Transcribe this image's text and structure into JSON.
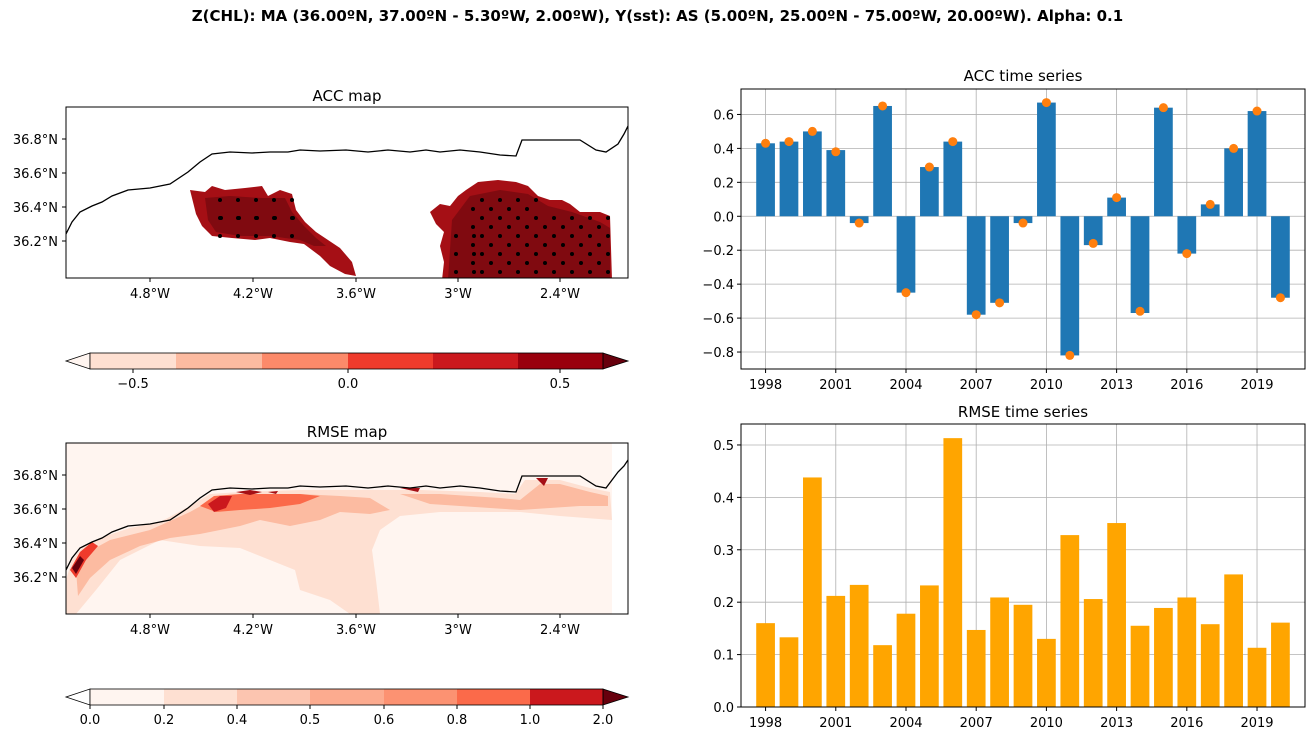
{
  "suptitle": "Z(CHL): MA (36.00ºN, 37.00ºN - 5.30ºW, 2.00ºW), Y(sst): AS (5.00ºN, 25.00ºN - 75.00ºW, 20.00ºW). Alpha: 0.1",
  "colors": {
    "acc_bar": "#1f77b4",
    "acc_dot": "#ff7f0e",
    "rmse_bar": "#ffa500",
    "grid": "#b0b0b0",
    "coast": "#000000",
    "reds": [
      "#fff5f0",
      "#fee0d2",
      "#fcbba1",
      "#fc9272",
      "#fb6a4a",
      "#ef3b2c",
      "#cb181d",
      "#a50f15",
      "#67000d"
    ]
  },
  "maps": {
    "acc": {
      "title": "ACC map",
      "lat_ticks": [
        "36.2°N",
        "36.4°N",
        "36.6°N",
        "36.8°N"
      ],
      "lon_ticks": [
        "4.8°W",
        "4.2°W",
        "3.6°W",
        "3°W",
        "2.4°W"
      ],
      "colorbar_ticks": [
        "−0.5",
        "0.0",
        "0.5"
      ]
    },
    "rmse": {
      "title": "RMSE map",
      "lat_ticks": [
        "36.2°N",
        "36.4°N",
        "36.6°N",
        "36.8°N"
      ],
      "lon_ticks": [
        "4.8°W",
        "4.2°W",
        "3.6°W",
        "3°W",
        "2.4°W"
      ],
      "colorbar_ticks": [
        "0.0",
        "0.2",
        "0.4",
        "0.5",
        "0.6",
        "0.8",
        "1.0",
        "2.0"
      ]
    }
  },
  "chart_data": [
    {
      "type": "bar",
      "title": "ACC time series",
      "xlabel": "",
      "ylabel": "",
      "x": [
        1998,
        1999,
        2000,
        2001,
        2002,
        2003,
        2004,
        2005,
        2006,
        2007,
        2008,
        2009,
        2010,
        2011,
        2012,
        2013,
        2014,
        2015,
        2016,
        2017,
        2018,
        2019,
        2020
      ],
      "values": [
        0.43,
        0.44,
        0.5,
        0.39,
        -0.04,
        0.65,
        -0.45,
        0.29,
        0.44,
        -0.58,
        -0.51,
        -0.04,
        0.67,
        -0.82,
        -0.17,
        0.11,
        -0.57,
        0.64,
        -0.22,
        0.07,
        0.4,
        0.62,
        -0.48
      ],
      "points": [
        0.43,
        0.44,
        0.5,
        0.38,
        -0.04,
        0.65,
        -0.45,
        0.29,
        0.44,
        -0.58,
        -0.51,
        -0.04,
        0.67,
        -0.82,
        -0.16,
        0.11,
        -0.56,
        0.64,
        -0.22,
        0.07,
        0.4,
        0.62,
        -0.48
      ],
      "xticks": [
        1998,
        2001,
        2004,
        2007,
        2010,
        2013,
        2016,
        2019
      ],
      "yticks": [
        "−0.8",
        "−0.6",
        "−0.4",
        "−0.2",
        "0.0",
        "0.2",
        "0.4",
        "0.6"
      ],
      "ylim": [
        -0.9,
        0.75
      ],
      "grid": true
    },
    {
      "type": "bar",
      "title": "RMSE time series",
      "xlabel": "",
      "ylabel": "",
      "x": [
        1998,
        1999,
        2000,
        2001,
        2002,
        2003,
        2004,
        2005,
        2006,
        2007,
        2008,
        2009,
        2010,
        2011,
        2012,
        2013,
        2014,
        2015,
        2016,
        2017,
        2018,
        2019,
        2020
      ],
      "values": [
        0.16,
        0.133,
        0.438,
        0.212,
        0.233,
        0.118,
        0.178,
        0.232,
        0.513,
        0.147,
        0.209,
        0.195,
        0.13,
        0.328,
        0.206,
        0.351,
        0.155,
        0.189,
        0.209,
        0.158,
        0.253,
        0.113,
        0.161
      ],
      "xticks": [
        1998,
        2001,
        2004,
        2007,
        2010,
        2013,
        2016,
        2019
      ],
      "yticks": [
        "0.0",
        "0.1",
        "0.2",
        "0.3",
        "0.4",
        "0.5"
      ],
      "ylim": [
        0,
        0.54
      ],
      "grid": true
    }
  ]
}
